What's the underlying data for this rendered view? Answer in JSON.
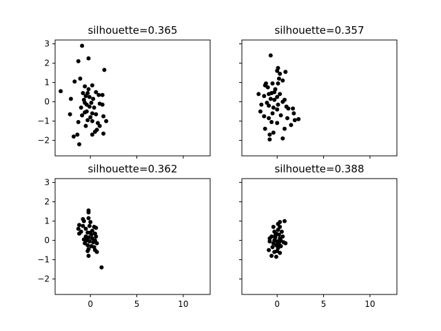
{
  "chart_data": [
    {
      "type": "scatter",
      "title": "silhouette=0.365",
      "xlim": [
        -3.8,
        12.9
      ],
      "ylim": [
        -2.8,
        3.2
      ],
      "x_ticks": [
        0,
        5,
        10
      ],
      "y_ticks": [
        -2,
        -1,
        0,
        1,
        2,
        3
      ],
      "show_x_ticklabels": false,
      "show_y_ticklabels": true,
      "marker_color": "#000000",
      "points": [
        [
          -0.9,
          2.9
        ],
        [
          -1.3,
          2.1
        ],
        [
          -0.2,
          2.25
        ],
        [
          1.5,
          1.65
        ],
        [
          -1.7,
          1.05
        ],
        [
          -1.1,
          1.2
        ],
        [
          -3.2,
          0.55
        ],
        [
          -2.1,
          0.15
        ],
        [
          -0.6,
          0.8
        ],
        [
          0.2,
          0.85
        ],
        [
          -0.2,
          0.65
        ],
        [
          -0.3,
          0.45
        ],
        [
          -0.8,
          0.45
        ],
        [
          0.6,
          0.5
        ],
        [
          1.3,
          0.35
        ],
        [
          0.9,
          0.35
        ],
        [
          -0.5,
          0.3
        ],
        [
          -0.1,
          0.25
        ],
        [
          0.3,
          0.15
        ],
        [
          -0.7,
          0.1
        ],
        [
          -0.6,
          -0.05
        ],
        [
          0.1,
          -0.05
        ],
        [
          -0.4,
          -0.15
        ],
        [
          1.0,
          -0.1
        ],
        [
          1.3,
          -0.15
        ],
        [
          -0.1,
          -0.25
        ],
        [
          -1.0,
          -0.3
        ],
        [
          0.4,
          -0.3
        ],
        [
          -2.2,
          -0.65
        ],
        [
          -0.6,
          -0.55
        ],
        [
          0.2,
          -0.6
        ],
        [
          -0.9,
          -0.7
        ],
        [
          0.0,
          -0.8
        ],
        [
          0.6,
          -0.65
        ],
        [
          1.4,
          -0.75
        ],
        [
          -0.3,
          -0.95
        ],
        [
          0.2,
          -1.0
        ],
        [
          1.7,
          -1.0
        ],
        [
          -1.3,
          -1.05
        ],
        [
          0.8,
          -1.1
        ],
        [
          1.0,
          -1.25
        ],
        [
          -0.5,
          -1.25
        ],
        [
          0.7,
          -1.45
        ],
        [
          0.5,
          -1.55
        ],
        [
          -1.4,
          -1.7
        ],
        [
          0.2,
          -1.7
        ],
        [
          1.4,
          -1.65
        ],
        [
          -1.8,
          -1.8
        ],
        [
          -1.2,
          -2.2
        ],
        [
          -0.4,
          -0.5
        ]
      ]
    },
    {
      "type": "scatter",
      "title": "silhouette=0.357",
      "xlim": [
        -3.8,
        12.9
      ],
      "ylim": [
        -2.8,
        3.2
      ],
      "x_ticks": [
        0,
        5,
        10
      ],
      "y_ticks": [
        -2,
        -1,
        0,
        1,
        2,
        3
      ],
      "show_x_ticklabels": false,
      "show_y_ticklabels": false,
      "marker_color": "#000000",
      "points": [
        [
          -0.7,
          2.4
        ],
        [
          0.1,
          1.75
        ],
        [
          0.9,
          1.55
        ],
        [
          0.0,
          1.6
        ],
        [
          0.3,
          1.45
        ],
        [
          0.2,
          1.2
        ],
        [
          0.6,
          1.1
        ],
        [
          -1.2,
          0.95
        ],
        [
          -1.3,
          0.85
        ],
        [
          -0.5,
          0.95
        ],
        [
          0.1,
          0.95
        ],
        [
          -1.0,
          0.75
        ],
        [
          -0.2,
          0.65
        ],
        [
          -0.3,
          0.5
        ],
        [
          -0.9,
          0.4
        ],
        [
          -0.6,
          0.45
        ],
        [
          -2.0,
          0.4
        ],
        [
          -1.4,
          0.3
        ],
        [
          0.3,
          0.4
        ],
        [
          0.0,
          0.25
        ],
        [
          -0.7,
          0.15
        ],
        [
          -0.3,
          0.1
        ],
        [
          0.8,
          0.1
        ],
        [
          -1.1,
          -0.05
        ],
        [
          0.6,
          0.0
        ],
        [
          -1.7,
          -0.15
        ],
        [
          0.1,
          -0.15
        ],
        [
          -0.9,
          -0.2
        ],
        [
          -0.4,
          -0.3
        ],
        [
          1.0,
          -0.25
        ],
        [
          1.2,
          -0.35
        ],
        [
          1.7,
          -0.35
        ],
        [
          -1.8,
          -0.5
        ],
        [
          0.0,
          -0.4
        ],
        [
          -0.5,
          -0.6
        ],
        [
          1.8,
          -0.6
        ],
        [
          -1.4,
          -0.75
        ],
        [
          0.4,
          -0.7
        ],
        [
          -0.9,
          -0.85
        ],
        [
          1.1,
          -0.85
        ],
        [
          2.3,
          -0.9
        ],
        [
          1.9,
          -0.95
        ],
        [
          -0.6,
          -1.05
        ],
        [
          0.0,
          -1.1
        ],
        [
          1.5,
          -1.2
        ],
        [
          -1.3,
          -1.4
        ],
        [
          0.8,
          -1.4
        ],
        [
          -0.4,
          -1.6
        ],
        [
          -0.8,
          -1.7
        ],
        [
          -0.8,
          -1.95
        ],
        [
          0.6,
          -1.9
        ]
      ]
    },
    {
      "type": "scatter",
      "title": "silhouette=0.362",
      "xlim": [
        -3.8,
        12.9
      ],
      "ylim": [
        -2.8,
        3.2
      ],
      "x_ticks": [
        0,
        5,
        10
      ],
      "y_ticks": [
        -2,
        -1,
        0,
        1,
        2,
        3
      ],
      "show_x_ticklabels": true,
      "show_y_ticklabels": true,
      "marker_color": "#000000",
      "points": [
        [
          -0.2,
          1.55
        ],
        [
          -0.2,
          1.45
        ],
        [
          -0.2,
          1.15
        ],
        [
          -0.8,
          1.1
        ],
        [
          -0.7,
          1.0
        ],
        [
          0.0,
          0.95
        ],
        [
          -1.2,
          0.8
        ],
        [
          -0.8,
          0.75
        ],
        [
          -1.3,
          0.6
        ],
        [
          -0.1,
          0.75
        ],
        [
          0.4,
          0.7
        ],
        [
          0.6,
          0.65
        ],
        [
          -0.5,
          0.6
        ],
        [
          0.2,
          0.5
        ],
        [
          -1.0,
          0.45
        ],
        [
          -0.3,
          0.4
        ],
        [
          0.5,
          0.35
        ],
        [
          -1.2,
          0.35
        ],
        [
          0.1,
          0.3
        ],
        [
          -0.5,
          0.2
        ],
        [
          0.6,
          0.2
        ],
        [
          -0.2,
          0.15
        ],
        [
          0.2,
          0.1
        ],
        [
          -0.7,
          0.05
        ],
        [
          0.5,
          0.0
        ],
        [
          -0.1,
          -0.05
        ],
        [
          0.3,
          -0.1
        ],
        [
          -0.6,
          -0.15
        ],
        [
          0.7,
          -0.15
        ],
        [
          -0.3,
          -0.25
        ],
        [
          0.1,
          -0.3
        ],
        [
          0.4,
          -0.35
        ],
        [
          -0.2,
          -0.45
        ],
        [
          0.5,
          -0.5
        ],
        [
          -0.3,
          -0.55
        ],
        [
          0.7,
          -0.6
        ],
        [
          -0.2,
          -0.8
        ],
        [
          1.2,
          -1.4
        ],
        [
          0.0,
          0.4
        ],
        [
          -0.4,
          0.0
        ]
      ]
    },
    {
      "type": "scatter",
      "title": "silhouette=0.388",
      "xlim": [
        -3.8,
        12.9
      ],
      "ylim": [
        -2.8,
        3.2
      ],
      "x_ticks": [
        0,
        5,
        10
      ],
      "y_ticks": [
        -2,
        -1,
        0,
        1,
        2,
        3
      ],
      "show_x_ticklabels": true,
      "show_y_ticklabels": false,
      "marker_color": "#000000",
      "points": [
        [
          0.8,
          1.0
        ],
        [
          0.3,
          0.95
        ],
        [
          0.1,
          0.85
        ],
        [
          -0.4,
          0.7
        ],
        [
          0.3,
          0.7
        ],
        [
          0.1,
          0.55
        ],
        [
          -0.3,
          0.45
        ],
        [
          0.5,
          0.45
        ],
        [
          -0.1,
          0.35
        ],
        [
          0.2,
          0.3
        ],
        [
          0.6,
          0.2
        ],
        [
          -0.6,
          0.2
        ],
        [
          -0.2,
          0.15
        ],
        [
          0.3,
          0.1
        ],
        [
          -0.8,
          0.1
        ],
        [
          0.4,
          0.0
        ],
        [
          -0.3,
          0.0
        ],
        [
          0.0,
          -0.05
        ],
        [
          -0.8,
          -0.05
        ],
        [
          0.7,
          -0.1
        ],
        [
          -0.4,
          -0.15
        ],
        [
          0.2,
          -0.15
        ],
        [
          0.9,
          -0.15
        ],
        [
          -0.1,
          -0.25
        ],
        [
          0.4,
          -0.3
        ],
        [
          -0.5,
          -0.35
        ],
        [
          0.1,
          -0.4
        ],
        [
          -0.9,
          -0.5
        ],
        [
          0.0,
          -0.55
        ],
        [
          -0.3,
          -0.6
        ],
        [
          0.3,
          -0.65
        ],
        [
          -0.6,
          -0.8
        ],
        [
          -0.1,
          -0.85
        ],
        [
          0.1,
          -0.2
        ],
        [
          -0.2,
          0.25
        ]
      ]
    }
  ]
}
